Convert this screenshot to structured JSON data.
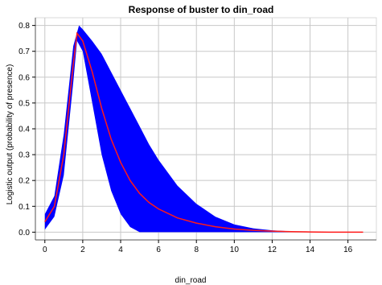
{
  "chart_data": {
    "type": "area",
    "title": "Response of buster to din_road",
    "xlabel": "din_road",
    "ylabel": "Logistic output (probability of presence)",
    "xlim": [
      -0.5,
      17.5
    ],
    "ylim": [
      -0.03,
      0.83
    ],
    "xticks": [
      0,
      2,
      4,
      6,
      8,
      10,
      12,
      14,
      16
    ],
    "yticks": [
      0.0,
      0.1,
      0.2,
      0.3,
      0.4,
      0.5,
      0.6,
      0.7,
      0.8
    ],
    "grid": true,
    "colors": {
      "mean_line": "#ff1a1a",
      "band": "#0000ff",
      "grid": "#c8c8c8",
      "frame": "#d9d9d9"
    },
    "series": [
      {
        "role": "mean",
        "x": [
          0.0,
          0.5,
          1.0,
          1.5,
          1.7,
          2.0,
          2.5,
          3.0,
          3.5,
          4.0,
          4.5,
          5.0,
          5.5,
          6.0,
          7.0,
          8.0,
          9.0,
          10.0,
          11.0,
          12.0,
          13.0,
          14.0,
          15.0,
          16.0,
          16.8
        ],
        "y": [
          0.04,
          0.1,
          0.3,
          0.65,
          0.77,
          0.74,
          0.62,
          0.48,
          0.36,
          0.27,
          0.2,
          0.15,
          0.115,
          0.09,
          0.055,
          0.035,
          0.021,
          0.012,
          0.007,
          0.004,
          0.002,
          0.001,
          0.0,
          0.0,
          0.0
        ]
      },
      {
        "role": "band-upper",
        "x": [
          0.0,
          0.5,
          1.0,
          1.5,
          1.8,
          2.0,
          2.5,
          3.0,
          3.5,
          4.0,
          4.5,
          5.0,
          5.5,
          6.0,
          7.0,
          8.0,
          9.0,
          10.0,
          11.0,
          12.0,
          13.0,
          14.0,
          15.0,
          16.0,
          16.8
        ],
        "y": [
          0.07,
          0.14,
          0.38,
          0.72,
          0.8,
          0.785,
          0.74,
          0.69,
          0.62,
          0.55,
          0.48,
          0.41,
          0.34,
          0.28,
          0.18,
          0.11,
          0.06,
          0.03,
          0.015,
          0.007,
          0.003,
          0.001,
          0.0,
          0.0,
          0.0
        ]
      },
      {
        "role": "band-lower",
        "x": [
          0.0,
          0.5,
          1.0,
          1.5,
          1.7,
          2.0,
          2.5,
          3.0,
          3.5,
          4.0,
          4.5,
          5.0,
          5.5,
          6.0,
          7.0,
          8.0,
          9.0,
          10.0,
          11.0,
          12.0,
          13.0,
          14.0,
          15.0,
          16.0,
          16.8
        ],
        "y": [
          0.01,
          0.06,
          0.22,
          0.58,
          0.74,
          0.7,
          0.5,
          0.3,
          0.16,
          0.07,
          0.02,
          0.0,
          0.0,
          0.0,
          0.0,
          0.0,
          0.0,
          0.0,
          0.0,
          0.0,
          0.0,
          0.0,
          0.0,
          0.0,
          0.0
        ]
      }
    ]
  }
}
